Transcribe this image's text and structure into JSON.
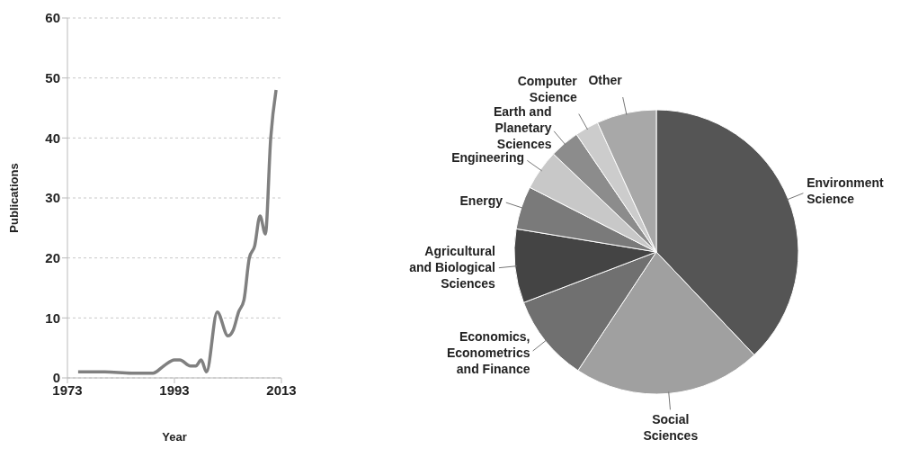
{
  "chart_data": [
    {
      "type": "line",
      "xlabel": "Year",
      "ylabel": "Publications",
      "x": [
        1975,
        1980,
        1985,
        1989,
        1991,
        1993,
        1994,
        1996,
        1997,
        1998,
        1999,
        2001,
        2003,
        2004,
        2005,
        2006,
        2007,
        2008,
        2009,
        2010,
        2011,
        2012
      ],
      "series": [
        {
          "color": "#808080",
          "values": [
            1,
            1,
            0.8,
            0.8,
            2,
            3,
            3,
            2,
            2,
            3,
            1,
            11,
            7,
            8,
            11,
            13,
            20,
            22,
            27,
            24,
            40,
            48
          ]
        }
      ],
      "xlim": [
        1973,
        2013
      ],
      "xticks": [
        1973,
        1993,
        2013
      ],
      "ylim": [
        0,
        60
      ],
      "yticks": [
        0,
        10,
        20,
        30,
        40,
        50,
        60
      ],
      "grid": "y",
      "marker": "none",
      "line_style": "solid",
      "legend": false
    },
    {
      "type": "pie",
      "categories": [
        "Environment Science",
        "Social Sciences",
        "Economics, Econometrics and Finance",
        "Agricultural and Biological Sciences",
        "Energy",
        "Engineering",
        "Earth and Planetary Sciences",
        "Computer Science",
        "Other"
      ],
      "values": [
        37.9,
        21.4,
        9.9,
        8.4,
        4.9,
        4.6,
        3.4,
        2.7,
        6.8
      ],
      "colors": [
        "#555555",
        "#a0a0a0",
        "#707070",
        "#444444",
        "#7a7a7a",
        "#c8c8c8",
        "#8c8c8c",
        "#cccccc",
        "#a8a8a8"
      ],
      "legend": false
    }
  ]
}
